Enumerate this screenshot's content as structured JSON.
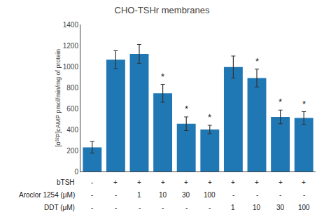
{
  "chart_data": {
    "type": "bar",
    "title": "CHO-TSHr membranes",
    "ylabel": "[α³²P]cAMP pmol/min/mg of protein",
    "categories": [
      null,
      null,
      null,
      null,
      null,
      null,
      null,
      null,
      null,
      null
    ],
    "values": [
      230,
      1065,
      1120,
      745,
      455,
      400,
      995,
      890,
      520,
      510
    ],
    "errors": [
      55,
      85,
      90,
      85,
      65,
      40,
      105,
      85,
      65,
      60
    ],
    "significant": [
      false,
      false,
      false,
      true,
      true,
      true,
      false,
      true,
      true,
      true
    ],
    "significance_mark": "*",
    "table": [
      {
        "label": "bTSH",
        "values": [
          "-",
          "+",
          "+",
          "+",
          "+",
          "+",
          "+",
          "+",
          "+",
          "+"
        ]
      },
      {
        "label": "Aroclor 1254 (μM)",
        "values": [
          "-",
          "-",
          "1",
          "10",
          "30",
          "100",
          "-",
          "-",
          "-",
          "-"
        ]
      },
      {
        "label": "DDT (μM)",
        "values": [
          "-",
          "-",
          "-",
          "-",
          "-",
          "-",
          "1",
          "10",
          "30",
          "100"
        ]
      }
    ],
    "ylim": [
      0,
      1400
    ],
    "yticks": [
      0,
      200,
      400,
      600,
      800,
      1000,
      1200,
      1400
    ],
    "grid": false
  }
}
